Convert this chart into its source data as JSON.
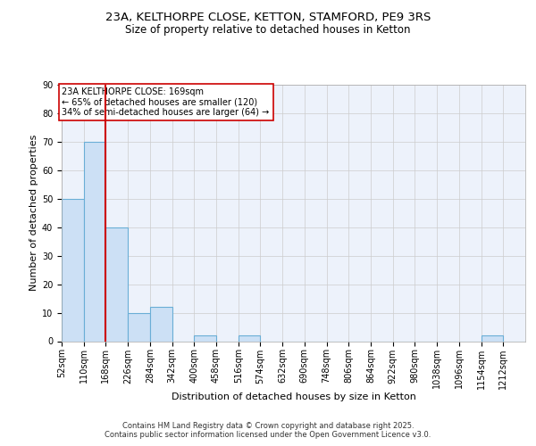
{
  "title_line1": "23A, KELTHORPE CLOSE, KETTON, STAMFORD, PE9 3RS",
  "title_line2": "Size of property relative to detached houses in Ketton",
  "xlabel": "Distribution of detached houses by size in Ketton",
  "ylabel": "Number of detached properties",
  "bar_color": "#cce0f5",
  "bar_edge_color": "#6aaed6",
  "bar_edge_width": 0.8,
  "bins": [
    52,
    110,
    168,
    226,
    284,
    342,
    400,
    458,
    516,
    574,
    632,
    690,
    748,
    806,
    864,
    922,
    980,
    1038,
    1096,
    1154,
    1212
  ],
  "bin_labels": [
    "52sqm",
    "110sqm",
    "168sqm",
    "226sqm",
    "284sqm",
    "342sqm",
    "400sqm",
    "458sqm",
    "516sqm",
    "574sqm",
    "632sqm",
    "690sqm",
    "748sqm",
    "806sqm",
    "864sqm",
    "922sqm",
    "980sqm",
    "1038sqm",
    "1096sqm",
    "1154sqm",
    "1212sqm"
  ],
  "counts": [
    50,
    70,
    40,
    10,
    12,
    0,
    2,
    0,
    2,
    0,
    0,
    0,
    0,
    0,
    0,
    0,
    0,
    0,
    0,
    2,
    0
  ],
  "property_bin_index": 2,
  "red_line_color": "#cc0000",
  "annotation_text": "23A KELTHORPE CLOSE: 169sqm\n← 65% of detached houses are smaller (120)\n34% of semi-detached houses are larger (64) →",
  "annotation_box_color": "white",
  "annotation_box_edge_color": "#cc0000",
  "annotation_fontsize": 7,
  "ylim": [
    0,
    90
  ],
  "yticks": [
    0,
    10,
    20,
    30,
    40,
    50,
    60,
    70,
    80,
    90
  ],
  "grid_color": "#cccccc",
  "background_color": "#edf2fb",
  "footer_text": "Contains HM Land Registry data © Crown copyright and database right 2025.\nContains public sector information licensed under the Open Government Licence v3.0.",
  "title_fontsize": 9.5,
  "subtitle_fontsize": 8.5,
  "axis_label_fontsize": 8,
  "tick_fontsize": 7,
  "footer_fontsize": 6
}
